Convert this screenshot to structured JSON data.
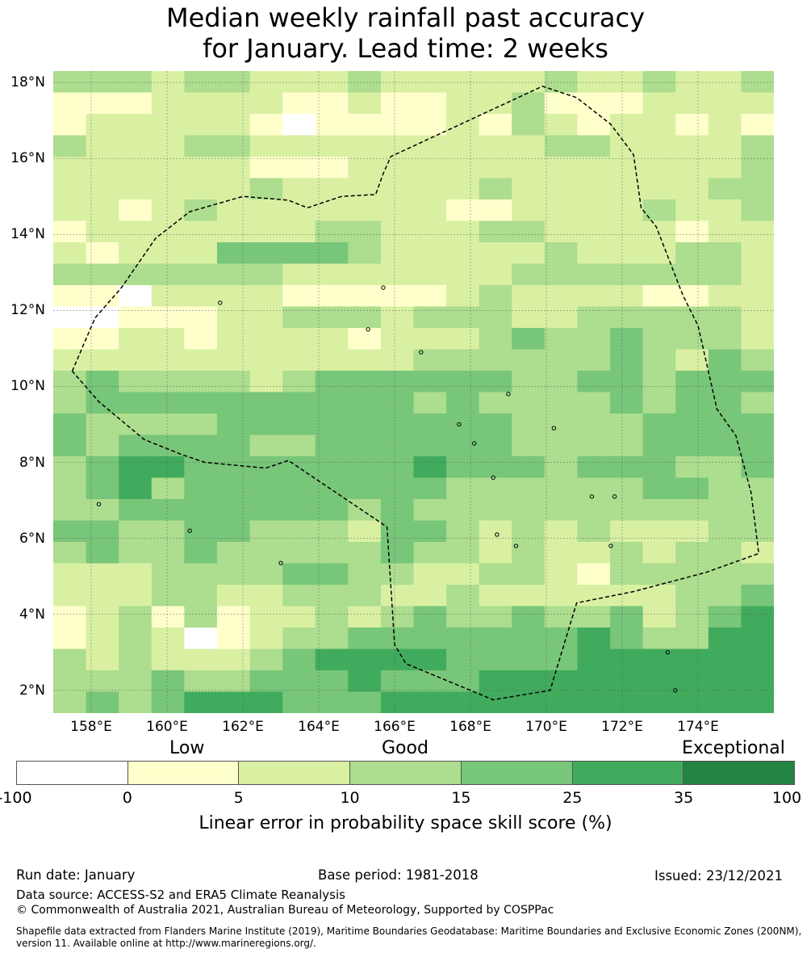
{
  "title": {
    "line1": "Median weekly rainfall past accuracy",
    "line2": "for January. Lead time: 2 weeks"
  },
  "map": {
    "lon_range": [
      157,
      176
    ],
    "lat_range": [
      1.4,
      18.3
    ],
    "grid_lons": [
      158,
      160,
      162,
      164,
      166,
      168,
      170,
      172,
      174
    ],
    "grid_lats": [
      2,
      4,
      6,
      8,
      10,
      12,
      14,
      16,
      18
    ],
    "x_ticks": [
      "158°E",
      "160°E",
      "162°E",
      "164°E",
      "166°E",
      "168°E",
      "170°E",
      "172°E",
      "174°E"
    ],
    "y_ticks": [
      "2°N",
      "4°N",
      "6°N",
      "8°N",
      "10°N",
      "12°N",
      "14°N",
      "16°N",
      "18°N"
    ],
    "cell_size_deg": 0.83,
    "skill_grid": [
      "3332332223222223223223",
      "1112222112112231112222",
      "1222221011112132122121",
      "3222332222222223322223",
      "2222221112222222222223",
      "2222223222222322222233",
      "2212322222221122223223",
      "1222222233222332222122",
      "2122244443222223222332",
      "3333333222222233333332",
      "1102222111112322221122",
      "0011122333233322333332",
      "1122122221222343343332",
      "2222222222233333343243",
      "3433332344444433443444",
      "3444444444434333343443",
      "4333344444444433334444",
      "4344443344444433334444",
      "3455444444454443444334",
      "3453444444443333334433",
      "3344444443433333333333",
      "4433443332443232322233",
      "3433433333433232232332",
      "2223333443322332133333",
      "2223322333223222222334",
      "1231312232343343342345",
      "1232012334444444543355",
      "3232223455554444555555",
      "3334334445444555555555",
      "3434555444555555555555"
    ],
    "boundary_polygon": [
      [
        157.5,
        10.4
      ],
      [
        158.1,
        11.8
      ],
      [
        158.8,
        12.6
      ],
      [
        159.7,
        13.9
      ],
      [
        160.6,
        14.6
      ],
      [
        162.0,
        15.0
      ],
      [
        163.2,
        14.9
      ],
      [
        163.7,
        14.7
      ],
      [
        164.6,
        15.0
      ],
      [
        165.5,
        15.05
      ],
      [
        165.7,
        15.6
      ],
      [
        165.9,
        16.05
      ],
      [
        169.9,
        17.9
      ],
      [
        170.8,
        17.6
      ],
      [
        171.7,
        16.9
      ],
      [
        172.3,
        16.1
      ],
      [
        172.5,
        14.7
      ],
      [
        172.9,
        14.2
      ],
      [
        173.6,
        12.4
      ],
      [
        174.0,
        11.6
      ],
      [
        174.5,
        9.4
      ],
      [
        175.0,
        8.7
      ],
      [
        175.4,
        7.2
      ],
      [
        175.6,
        5.6
      ],
      [
        174.2,
        5.1
      ],
      [
        172.3,
        4.6
      ],
      [
        170.8,
        4.3
      ],
      [
        170.1,
        2.0
      ],
      [
        168.6,
        1.75
      ],
      [
        166.3,
        2.7
      ],
      [
        166.0,
        3.2
      ],
      [
        165.8,
        6.3
      ],
      [
        163.2,
        8.05
      ],
      [
        162.6,
        7.85
      ],
      [
        161.0,
        8.0
      ],
      [
        160.4,
        8.2
      ],
      [
        159.4,
        8.6
      ],
      [
        158.2,
        9.6
      ],
      [
        157.5,
        10.4
      ]
    ],
    "islands": [
      [
        158.2,
        6.9
      ],
      [
        163.0,
        5.35
      ],
      [
        166.7,
        10.9
      ],
      [
        167.7,
        9.0
      ],
      [
        168.7,
        6.1
      ],
      [
        169.2,
        5.8
      ],
      [
        171.2,
        7.1
      ],
      [
        171.8,
        7.1
      ],
      [
        173.2,
        3.0
      ],
      [
        173.4,
        2.0
      ],
      [
        165.3,
        11.5
      ],
      [
        169.0,
        9.8
      ],
      [
        161.4,
        12.2
      ],
      [
        165.7,
        12.6
      ],
      [
        171.7,
        5.8
      ],
      [
        168.1,
        8.5
      ],
      [
        160.6,
        6.2
      ],
      [
        170.2,
        8.9
      ],
      [
        168.6,
        7.6
      ]
    ]
  },
  "colorbar": {
    "headings": {
      "low": "Low",
      "good": "Good",
      "exceptional": "Exceptional"
    },
    "colors": [
      "#ffffff",
      "#ffffcc",
      "#d9f0a3",
      "#addd8e",
      "#78c679",
      "#41ab5d",
      "#238443"
    ],
    "ticks": [
      "-100",
      "0",
      "5",
      "10",
      "15",
      "25",
      "35",
      "100"
    ],
    "label": "Linear error in probability space skill score (%)"
  },
  "footer": {
    "run_date": "Run date: January",
    "base_period": "Base period: 1981-2018",
    "issued": "Issued: 23/12/2021",
    "data_source": "Data source: ACCESS-S2 and ERA5 Climate Reanalysis",
    "copyright": "© Commonwealth of Australia 2021, Australian Bureau of Meteorology, Supported by COSPPac",
    "shapefile": "Shapefile data extracted from Flanders Marine Institute (2019), Maritime Boundaries Geodatabase: Maritime Boundaries and Exclusive Economic Zones (200NM), version 11. Available online at http://www.marineregions.org/."
  }
}
